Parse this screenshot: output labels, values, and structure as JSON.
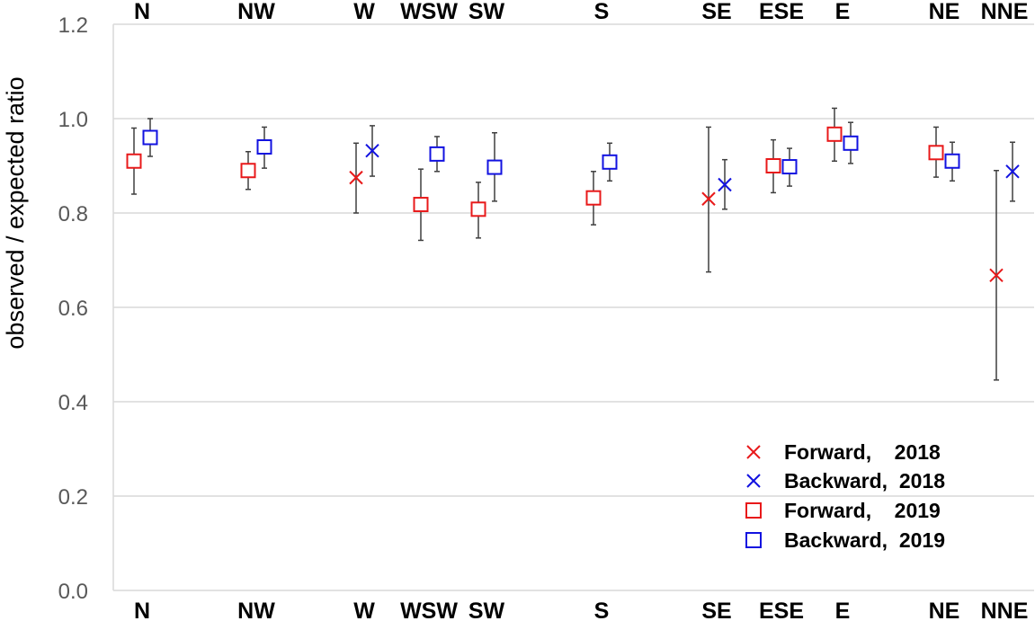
{
  "chart_data": {
    "type": "scatter",
    "title": "",
    "xlabel": "",
    "ylabel": "observed / expected ratio",
    "ylim": [
      0,
      1.2
    ],
    "yticks": [
      "0.0",
      "0.2",
      "0.4",
      "0.6",
      "0.8",
      "1.0",
      "1.2"
    ],
    "ytick_values": [
      0,
      0.2,
      0.4,
      0.6,
      0.8,
      1.0,
      1.2
    ],
    "grid": true,
    "categories": [
      "N",
      "NW",
      "W",
      "WSW",
      "SW",
      "S",
      "SE",
      "ESE",
      "E",
      "NE",
      "NNE"
    ],
    "legend_position": "bottom-right",
    "series": [
      {
        "name": "Forward,    2018",
        "marker": "x",
        "color": "#e8191a",
        "points": [
          {
            "category": "W",
            "y": 0.875,
            "err_low": 0.8,
            "err_high": 0.948
          },
          {
            "category": "SE",
            "y": 0.83,
            "err_low": 0.675,
            "err_high": 0.982
          },
          {
            "category": "NNE",
            "y": 0.668,
            "err_low": 0.446,
            "err_high": 0.89
          }
        ]
      },
      {
        "name": "Backward,  2018",
        "marker": "x",
        "color": "#1212e0",
        "points": [
          {
            "category": "W",
            "y": 0.932,
            "err_low": 0.878,
            "err_high": 0.985
          },
          {
            "category": "SE",
            "y": 0.86,
            "err_low": 0.808,
            "err_high": 0.913
          },
          {
            "category": "NNE",
            "y": 0.888,
            "err_low": 0.825,
            "err_high": 0.95
          }
        ]
      },
      {
        "name": "Forward,    2019",
        "marker": "square",
        "color": "#e8191a",
        "points": [
          {
            "category": "N",
            "y": 0.91,
            "err_low": 0.84,
            "err_high": 0.98
          },
          {
            "category": "NW",
            "y": 0.89,
            "err_low": 0.85,
            "err_high": 0.93
          },
          {
            "category": "WSW",
            "y": 0.818,
            "err_low": 0.742,
            "err_high": 0.893
          },
          {
            "category": "SW",
            "y": 0.808,
            "err_low": 0.747,
            "err_high": 0.865
          },
          {
            "category": "S",
            "y": 0.832,
            "err_low": 0.775,
            "err_high": 0.888
          },
          {
            "category": "ESE",
            "y": 0.9,
            "err_low": 0.843,
            "err_high": 0.955
          },
          {
            "category": "E",
            "y": 0.967,
            "err_low": 0.91,
            "err_high": 1.022
          },
          {
            "category": "NE",
            "y": 0.928,
            "err_low": 0.876,
            "err_high": 0.982
          }
        ]
      },
      {
        "name": "Backward,  2019",
        "marker": "square",
        "color": "#1212e0",
        "points": [
          {
            "category": "N",
            "y": 0.96,
            "err_low": 0.92,
            "err_high": 1.0
          },
          {
            "category": "NW",
            "y": 0.94,
            "err_low": 0.895,
            "err_high": 0.982
          },
          {
            "category": "WSW",
            "y": 0.925,
            "err_low": 0.888,
            "err_high": 0.962
          },
          {
            "category": "SW",
            "y": 0.897,
            "err_low": 0.825,
            "err_high": 0.97
          },
          {
            "category": "S",
            "y": 0.908,
            "err_low": 0.868,
            "err_high": 0.948
          },
          {
            "category": "ESE",
            "y": 0.898,
            "err_low": 0.857,
            "err_high": 0.937
          },
          {
            "category": "E",
            "y": 0.948,
            "err_low": 0.905,
            "err_high": 0.992
          },
          {
            "category": "NE",
            "y": 0.91,
            "err_low": 0.868,
            "err_high": 0.95
          }
        ]
      }
    ]
  }
}
